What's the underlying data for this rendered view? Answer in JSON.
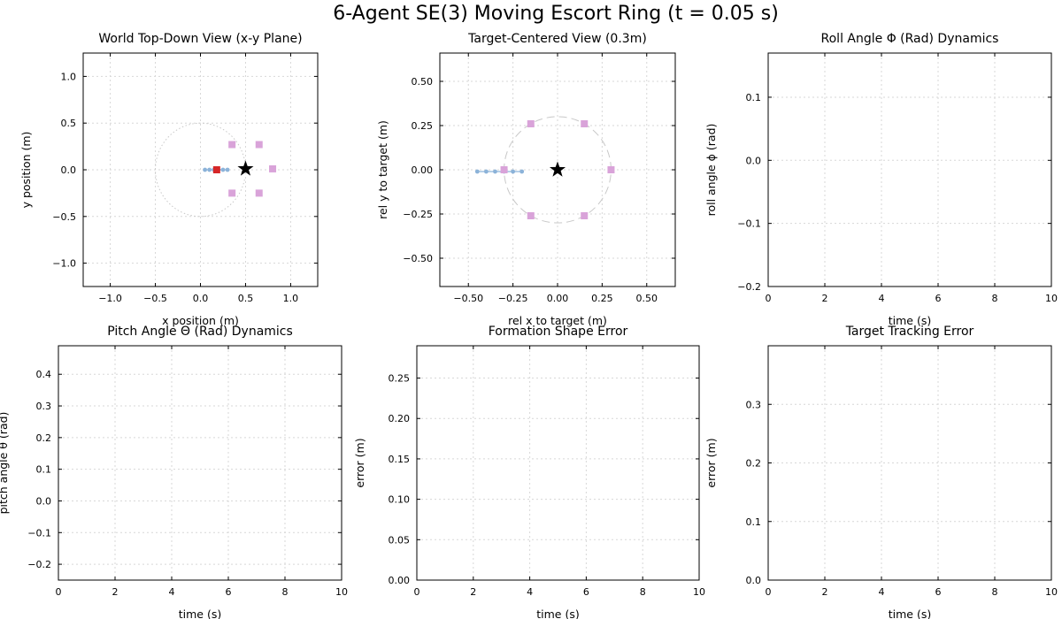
{
  "suptitle": "6-Agent SE(3) Moving Escort Ring (t = 0.05 s)",
  "chart_data": [
    {
      "id": "world",
      "type": "scatter",
      "title": "World Top-Down View (x-y Plane)",
      "xlabel": "x position (m)",
      "ylabel": "y position (m)",
      "xlim": [
        -1.3,
        1.3
      ],
      "ylim": [
        -1.25,
        1.25
      ],
      "xticks": [
        -1.0,
        -0.5,
        0.0,
        0.5,
        1.0
      ],
      "xticklabels": [
        "−1.0",
        "−0.5",
        "0.0",
        "0.5",
        "1.0"
      ],
      "yticks": [
        -1.0,
        -0.5,
        0.0,
        0.5,
        1.0
      ],
      "yticklabels": [
        "−1.0",
        "−0.5",
        "0.0",
        "0.5",
        "1.0"
      ],
      "grid": true,
      "series": [
        {
          "kind": "circle-path",
          "center": [
            0.0,
            0.0
          ],
          "radius": 0.5,
          "arc_deg": [
            10,
            350
          ],
          "color": "#c8c8c8",
          "dash": "dotted"
        },
        {
          "kind": "trail",
          "color": "#8cb3d9",
          "points": [
            [
              0.05,
              0.0
            ],
            [
              0.1,
              0.0
            ],
            [
              0.15,
              0.0
            ],
            [
              0.2,
              0.0
            ],
            [
              0.25,
              0.0
            ],
            [
              0.3,
              0.0
            ]
          ]
        },
        {
          "kind": "marker-square",
          "color": "#d9a3d9",
          "points": [
            [
              0.35,
              0.27
            ],
            [
              0.65,
              0.27
            ],
            [
              0.8,
              0.01
            ],
            [
              0.65,
              -0.25
            ],
            [
              0.35,
              -0.25
            ]
          ]
        },
        {
          "kind": "marker-square",
          "color": "#d62728",
          "points": [
            [
              0.18,
              0.0
            ]
          ]
        },
        {
          "kind": "marker-star",
          "color": "#000000",
          "points": [
            [
              0.5,
              0.01
            ]
          ]
        }
      ]
    },
    {
      "id": "target",
      "type": "scatter",
      "title": "Target-Centered View (0.3m)",
      "xlabel": "rel x to target (m)",
      "ylabel": "rel y to target (m)",
      "xlim": [
        -0.66,
        0.66
      ],
      "ylim": [
        -0.66,
        0.66
      ],
      "xticks": [
        -0.5,
        -0.25,
        0.0,
        0.25,
        0.5
      ],
      "xticklabels": [
        "−0.50",
        "−0.25",
        "0.00",
        "0.25",
        "0.50"
      ],
      "yticks": [
        -0.5,
        -0.25,
        0.0,
        0.25,
        0.5
      ],
      "yticklabels": [
        "−0.50",
        "−0.25",
        "0.00",
        "0.25",
        "0.50"
      ],
      "grid": true,
      "series": [
        {
          "kind": "circle-path",
          "center": [
            0.0,
            0.0
          ],
          "radius": 0.3,
          "arc_deg": [
            0,
            360
          ],
          "color": "#c8c8c8",
          "dash": "dashed"
        },
        {
          "kind": "trail",
          "color": "#8cb3d9",
          "points": [
            [
              -0.45,
              -0.01
            ],
            [
              -0.4,
              -0.01
            ],
            [
              -0.35,
              -0.01
            ],
            [
              -0.3,
              -0.01
            ],
            [
              -0.25,
              -0.01
            ],
            [
              -0.2,
              -0.01
            ]
          ]
        },
        {
          "kind": "marker-square",
          "color": "#d9a3d9",
          "points": [
            [
              0.3,
              0.0
            ],
            [
              0.15,
              0.26
            ],
            [
              -0.15,
              0.26
            ],
            [
              -0.3,
              0.0
            ],
            [
              -0.15,
              -0.26
            ],
            [
              0.15,
              -0.26
            ]
          ]
        },
        {
          "kind": "marker-star",
          "color": "#000000",
          "points": [
            [
              0.0,
              0.0
            ]
          ]
        }
      ]
    },
    {
      "id": "roll",
      "type": "line",
      "title": "Roll Angle Φ (Rad) Dynamics",
      "xlabel": "time (s)",
      "ylabel": "roll angle ϕ (rad)",
      "xlim": [
        0,
        10
      ],
      "ylim": [
        -0.2,
        0.17
      ],
      "xticks": [
        0,
        2,
        4,
        6,
        8,
        10
      ],
      "xticklabels": [
        "0",
        "2",
        "4",
        "6",
        "8",
        "10"
      ],
      "yticks": [
        -0.2,
        -0.1,
        0.0,
        0.1
      ],
      "yticklabels": [
        "−0.2",
        "−0.1",
        "0.0",
        "0.1"
      ],
      "grid": true,
      "series": []
    },
    {
      "id": "pitch",
      "type": "line",
      "title": "Pitch Angle Θ (Rad) Dynamics",
      "xlabel": "time (s)",
      "ylabel": "pitch angle θ (rad)",
      "xlim": [
        0,
        10
      ],
      "ylim": [
        -0.25,
        0.49
      ],
      "xticks": [
        0,
        2,
        4,
        6,
        8,
        10
      ],
      "xticklabels": [
        "0",
        "2",
        "4",
        "6",
        "8",
        "10"
      ],
      "yticks": [
        -0.2,
        -0.1,
        0.0,
        0.1,
        0.2,
        0.3,
        0.4
      ],
      "yticklabels": [
        "−0.2",
        "−0.1",
        "0.0",
        "0.1",
        "0.2",
        "0.3",
        "0.4"
      ],
      "grid": true,
      "series": []
    },
    {
      "id": "shape",
      "type": "line",
      "title": "Formation Shape Error",
      "xlabel": "time (s)",
      "ylabel": "error (m)",
      "xlim": [
        0,
        10
      ],
      "ylim": [
        0.0,
        0.29
      ],
      "xticks": [
        0,
        2,
        4,
        6,
        8,
        10
      ],
      "xticklabels": [
        "0",
        "2",
        "4",
        "6",
        "8",
        "10"
      ],
      "yticks": [
        0.0,
        0.05,
        0.1,
        0.15,
        0.2,
        0.25
      ],
      "yticklabels": [
        "0.00",
        "0.05",
        "0.10",
        "0.15",
        "0.20",
        "0.25"
      ],
      "grid": true,
      "series": []
    },
    {
      "id": "tracking",
      "type": "line",
      "title": "Target Tracking Error",
      "xlabel": "time (s)",
      "ylabel": "error (m)",
      "xlim": [
        0,
        10
      ],
      "ylim": [
        0.0,
        0.4
      ],
      "xticks": [
        0,
        2,
        4,
        6,
        8,
        10
      ],
      "xticklabels": [
        "0",
        "2",
        "4",
        "6",
        "8",
        "10"
      ],
      "yticks": [
        0.0,
        0.1,
        0.2,
        0.3
      ],
      "yticklabels": [
        "0.0",
        "0.1",
        "0.2",
        "0.3"
      ],
      "grid": true,
      "series": []
    }
  ]
}
